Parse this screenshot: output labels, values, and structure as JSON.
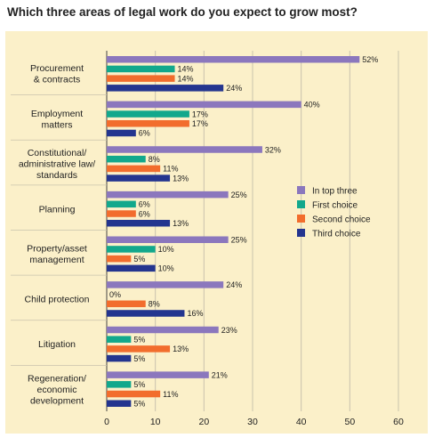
{
  "chart_data": {
    "type": "bar",
    "orientation": "horizontal",
    "title": "Which three areas of legal work do you expect to grow most?",
    "xlabel": "",
    "ylabel": "",
    "xlim": [
      0,
      60
    ],
    "x_ticks": [
      "0",
      "10",
      "20",
      "30",
      "40",
      "50",
      "60"
    ],
    "grid": true,
    "legend_position": "right",
    "categories": [
      [
        "Procurement",
        "& contracts"
      ],
      [
        "Employment",
        "matters"
      ],
      [
        "Constitutional/",
        "administrative law/",
        "standards"
      ],
      [
        "Planning"
      ],
      [
        "Property/asset",
        "management"
      ],
      [
        "Child protection"
      ],
      [
        "Litigation"
      ],
      [
        "Regeneration/",
        "economic",
        "development"
      ]
    ],
    "series": [
      {
        "name": "In top three",
        "color": "#8b77bd",
        "values": [
          52,
          40,
          32,
          25,
          25,
          24,
          23,
          21
        ],
        "labels": [
          "52%",
          "40%",
          "32%",
          "25%",
          "25%",
          "24%",
          "23%",
          "21%"
        ]
      },
      {
        "name": "First choice",
        "color": "#12a88c",
        "values": [
          14,
          17,
          8,
          6,
          10,
          0,
          5,
          5
        ],
        "labels": [
          "14%",
          "17%",
          "8%",
          "6%",
          "10%",
          "0%",
          "5%",
          "5%"
        ]
      },
      {
        "name": "Second choice",
        "color": "#f26d2d",
        "values": [
          14,
          17,
          11,
          6,
          5,
          8,
          13,
          11
        ],
        "labels": [
          "14%",
          "17%",
          "11%",
          "6%",
          "5%",
          "8%",
          "13%",
          "11%"
        ]
      },
      {
        "name": "Third choice",
        "color": "#24358f",
        "values": [
          24,
          6,
          13,
          13,
          10,
          16,
          5,
          5
        ],
        "labels": [
          "24%",
          "6%",
          "13%",
          "13%",
          "10%",
          "16%",
          "5%",
          "5%"
        ]
      }
    ],
    "colors": {
      "background": "#fbf0c9",
      "grid": "#c9c3ad",
      "text": "#222222"
    }
  }
}
